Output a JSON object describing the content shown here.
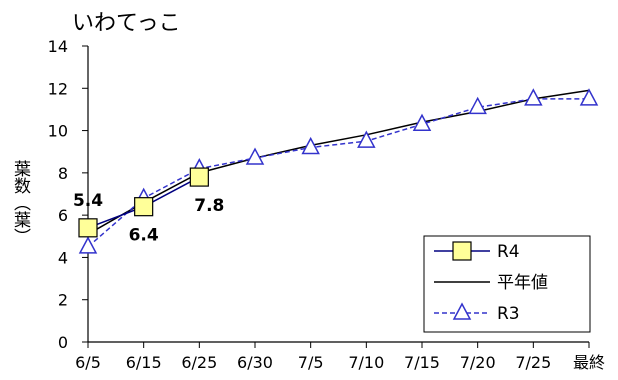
{
  "chart_data": {
    "type": "line",
    "title": "いわてっこ",
    "ylabel": "葉数（葉）",
    "xlabel": "",
    "ylim": [
      0,
      14
    ],
    "yticks": [
      0,
      2,
      4,
      6,
      8,
      10,
      12,
      14
    ],
    "categories": [
      "6/5",
      "6/15",
      "6/25",
      "6/30",
      "7/5",
      "7/10",
      "7/15",
      "7/20",
      "7/25",
      "最終"
    ],
    "series": [
      {
        "name": "R4",
        "values": [
          5.4,
          6.4,
          7.8,
          null,
          null,
          null,
          null,
          null,
          null,
          null
        ],
        "color": "#000080",
        "marker": "square",
        "marker_fill": "#ffff99",
        "dash": false
      },
      {
        "name": "平年値",
        "values": [
          5.1,
          6.6,
          8.0,
          8.7,
          9.3,
          9.8,
          10.4,
          10.9,
          11.5,
          11.9
        ],
        "color": "#000000",
        "marker": "none",
        "dash": false
      },
      {
        "name": "R3",
        "values": [
          4.5,
          6.8,
          8.2,
          8.7,
          9.2,
          9.5,
          10.3,
          11.1,
          11.5,
          11.5
        ],
        "color": "#3333cc",
        "marker": "triangle",
        "marker_fill": "#ffffff",
        "dash": true
      }
    ],
    "data_labels": [
      {
        "series": "R4",
        "index": 0,
        "text": "5.4"
      },
      {
        "series": "R4",
        "index": 1,
        "text": "6.4"
      },
      {
        "series": "R4",
        "index": 2,
        "text": "7.8"
      }
    ],
    "legend": "bottom-right",
    "grid": false
  }
}
